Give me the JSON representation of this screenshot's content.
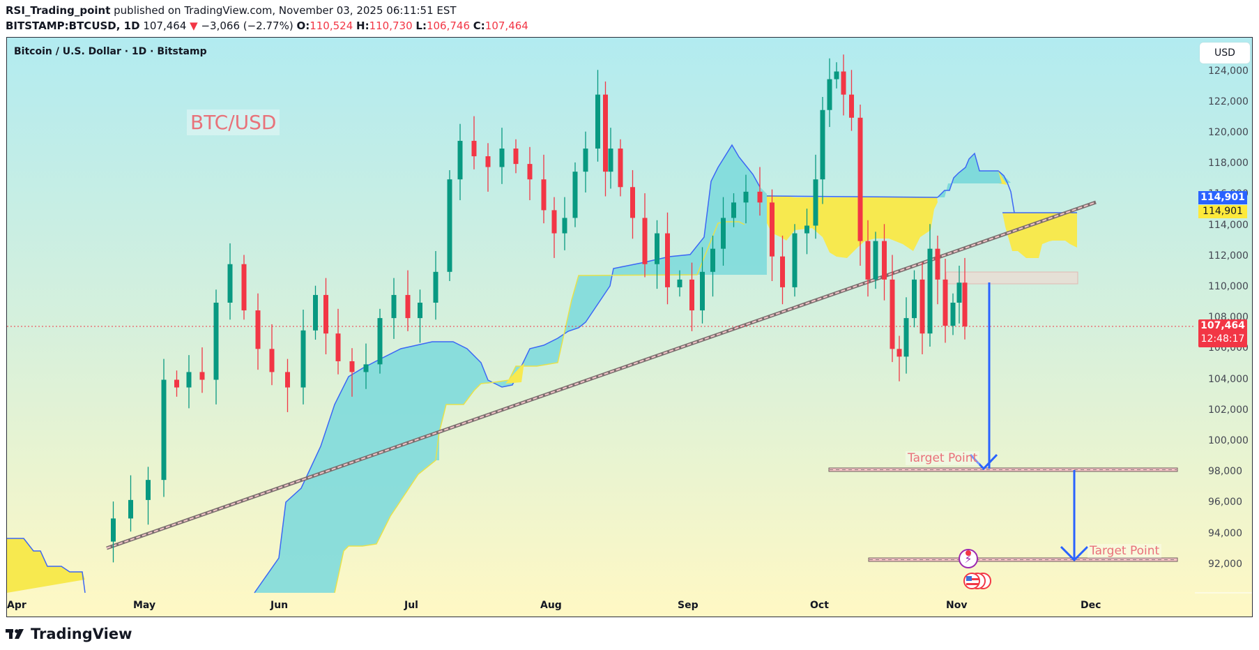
{
  "header": {
    "author": "RSI_Trading_point",
    "published_text": " published on TradingView.com, November 03, 2025 06:11:51 EST",
    "symbol": "BITSTAMP:BTCUSD, 1D",
    "last_price": "107,464",
    "change_arrow": "▼",
    "change": "−3,066 (−2.77%)",
    "open_label": "O:",
    "open": "110,524",
    "high_label": "H:",
    "high": "110,730",
    "low_label": "L:",
    "low": "106,746",
    "close_label": "C:",
    "close": "107,464"
  },
  "chart": {
    "legend_title": "Bitcoin / U.S. Dollar · 1D · Bitstamp",
    "currency_button": "USD",
    "watermark_label": "BTC/USD",
    "target_label_1": "Target Point",
    "target_label_2": "Target Point",
    "price_tag_blue": "114,901",
    "price_tag_yellow": "114,901",
    "price_tag_current": "107,464",
    "countdown": "12:48:17",
    "colors": {
      "up": "#089981",
      "down": "#f23645",
      "cloud_bull": "#7fdadb",
      "cloud_bear": "#f7e94f",
      "span_line": "#3b66f5",
      "arrow": "#2962ff",
      "bg_top": "#b2ebf2",
      "bg_bottom": "#fff9c4"
    }
  },
  "brand": {
    "name": "TradingView"
  },
  "chart_data": {
    "type": "candlestick",
    "title": "Bitcoin / U.S. Dollar · 1D · Bitstamp",
    "xlabel": "",
    "ylabel": "USD",
    "ylim": [
      90500,
      126000
    ],
    "y_ticks": [
      92000,
      94000,
      96000,
      98000,
      100000,
      102000,
      104000,
      106000,
      108000,
      110000,
      112000,
      114000,
      116000,
      118000,
      120000,
      122000,
      124000
    ],
    "x_ticks": [
      "Apr",
      "May",
      "Jun",
      "Jul",
      "Aug",
      "Sep",
      "Oct",
      "Nov",
      "Dec"
    ],
    "last": {
      "open": 110524,
      "high": 110730,
      "low": 106746,
      "close": 107464,
      "change": -3066,
      "change_pct": -2.77
    },
    "indicators": [
      "Ichimoku Cloud",
      "Ascending trendline",
      "Resistance box ~110,300–111,000"
    ],
    "annotations": [
      {
        "text": "Target Point",
        "price": 98000
      },
      {
        "text": "Target Point",
        "price": 92200
      },
      {
        "text": "BTC/USD"
      }
    ],
    "price_tags": {
      "cloud_span": 114901,
      "current": 107464
    },
    "approx_monthly_closes": [
      {
        "month": "Apr (end)",
        "close": 94500
      },
      {
        "month": "May",
        "close": 104500
      },
      {
        "month": "Jun",
        "close": 107200
      },
      {
        "month": "Jul",
        "close": 115800
      },
      {
        "month": "Aug",
        "close": 108300
      },
      {
        "month": "Sep",
        "close": 114000
      },
      {
        "month": "Oct",
        "close": 109500
      },
      {
        "month": "Nov 3",
        "close": 107464
      }
    ]
  }
}
